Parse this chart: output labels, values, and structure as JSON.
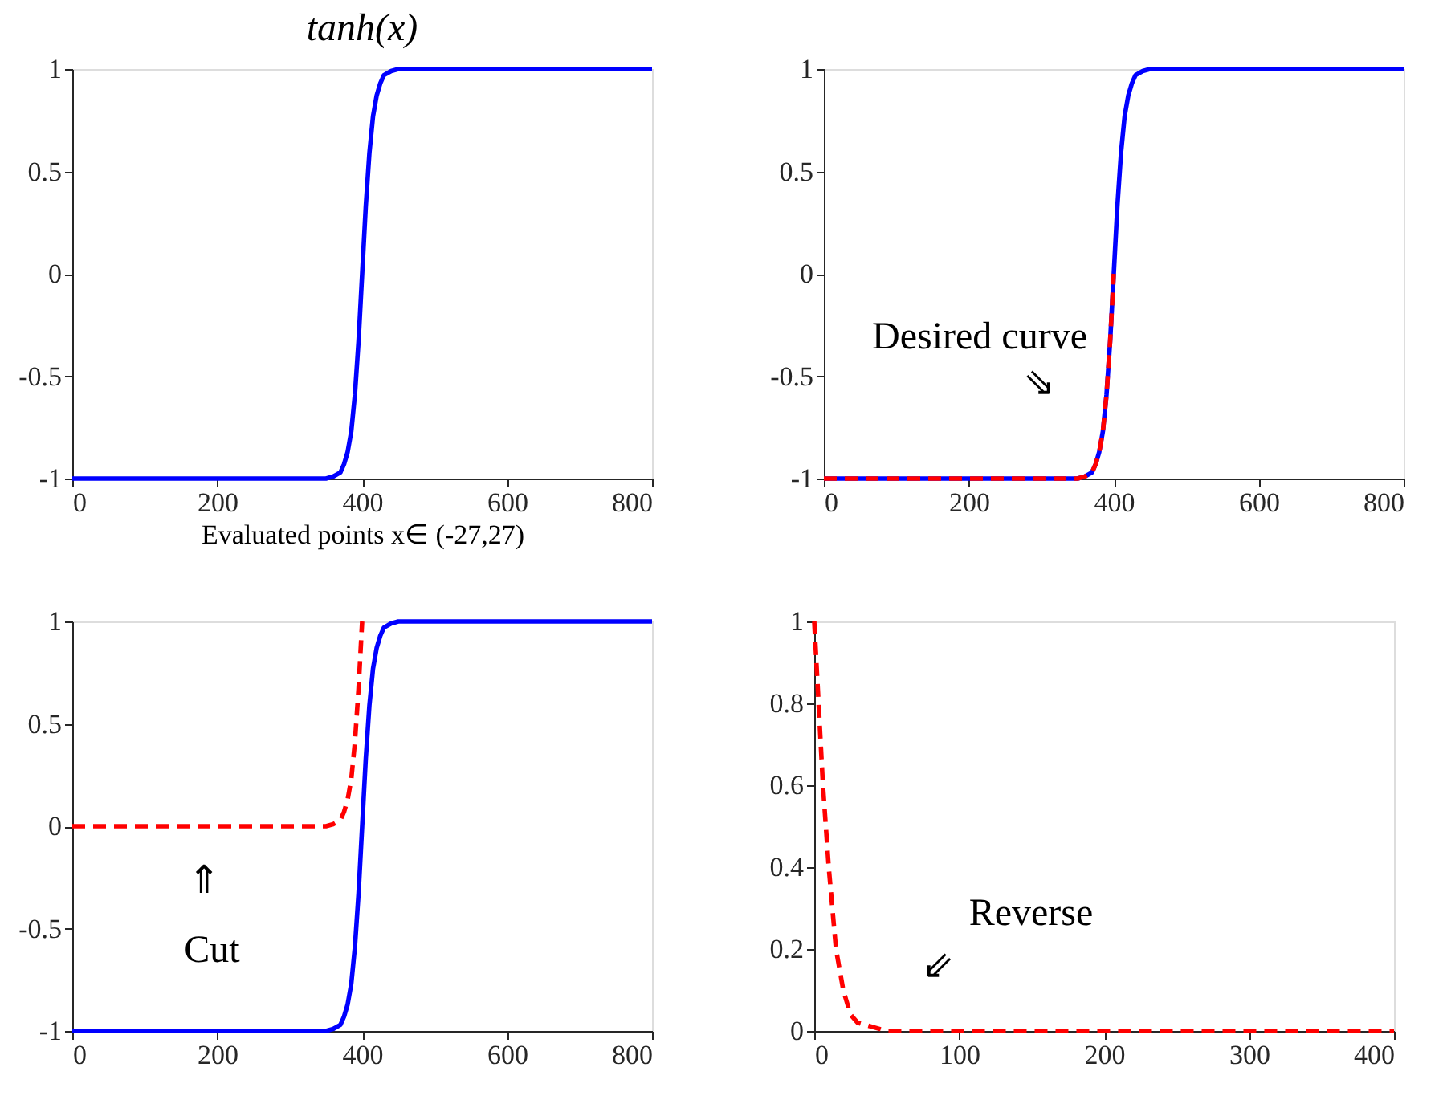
{
  "chart_data": [
    {
      "type": "line",
      "title": "tanh(x)",
      "xlabel": "Evaluated points x∈ (-27,27)",
      "xlim": [
        0,
        800
      ],
      "xticks": [
        0,
        200,
        400,
        600,
        800
      ],
      "ylim": [
        -1,
        1
      ],
      "yticks": [
        -1,
        -0.5,
        0,
        0.5,
        1
      ],
      "grid": false,
      "legend": false,
      "series": [
        {
          "color": "#0000ff",
          "x": [
            0,
            300,
            350,
            360,
            370,
            375,
            380,
            385,
            390,
            395,
            400,
            405,
            410,
            415,
            420,
            425,
            430,
            440,
            450,
            500,
            800
          ],
          "values": [
            -1,
            -1,
            -1,
            -0.99,
            -0.97,
            -0.93,
            -0.87,
            -0.77,
            -0.59,
            -0.33,
            0,
            0.33,
            0.59,
            0.77,
            0.87,
            0.93,
            0.97,
            0.99,
            1,
            1,
            1
          ],
          "line_style": "solid"
        }
      ]
    },
    {
      "type": "line",
      "xlim": [
        0,
        800
      ],
      "xticks": [
        0,
        200,
        400,
        600,
        800
      ],
      "ylim": [
        -1,
        1
      ],
      "yticks": [
        -1,
        -0.5,
        0,
        0.5,
        1
      ],
      "grid": false,
      "legend": false,
      "series": [
        {
          "color": "#0000ff",
          "x": [
            0,
            300,
            350,
            360,
            370,
            375,
            380,
            385,
            390,
            395,
            400,
            405,
            410,
            415,
            420,
            425,
            430,
            440,
            450,
            500,
            800
          ],
          "values": [
            -1,
            -1,
            -1,
            -0.99,
            -0.97,
            -0.93,
            -0.87,
            -0.77,
            -0.59,
            -0.33,
            0,
            0.33,
            0.59,
            0.77,
            0.87,
            0.93,
            0.97,
            0.99,
            1,
            1,
            1
          ],
          "line_style": "solid"
        },
        {
          "color": "#ff0000",
          "x": [
            0,
            300,
            350,
            360,
            370,
            375,
            380,
            385,
            390,
            395,
            400
          ],
          "values": [
            -1,
            -1,
            -1,
            -0.99,
            -0.97,
            -0.93,
            -0.87,
            -0.77,
            -0.59,
            -0.33,
            0
          ],
          "line_style": "dashed"
        }
      ],
      "annotations": [
        "Desired curve",
        "⇘"
      ]
    },
    {
      "type": "line",
      "xlim": [
        0,
        800
      ],
      "xticks": [
        0,
        200,
        400,
        600,
        800
      ],
      "ylim": [
        -1,
        1
      ],
      "yticks": [
        -1,
        -0.5,
        0,
        0.5,
        1
      ],
      "grid": false,
      "legend": false,
      "series": [
        {
          "color": "#0000ff",
          "x": [
            0,
            300,
            350,
            360,
            370,
            375,
            380,
            385,
            390,
            395,
            400,
            405,
            410,
            415,
            420,
            425,
            430,
            440,
            450,
            500,
            800
          ],
          "values": [
            -1,
            -1,
            -1,
            -0.99,
            -0.97,
            -0.93,
            -0.87,
            -0.77,
            -0.59,
            -0.33,
            0,
            0.33,
            0.59,
            0.77,
            0.87,
            0.93,
            0.97,
            0.99,
            1,
            1,
            1
          ],
          "line_style": "solid"
        },
        {
          "color": "#ff0000",
          "x": [
            0,
            300,
            350,
            360,
            370,
            375,
            380,
            385,
            390,
            395,
            400
          ],
          "values": [
            0,
            0,
            0,
            0.01,
            0.03,
            0.07,
            0.13,
            0.23,
            0.41,
            0.67,
            1
          ],
          "line_style": "dashed"
        }
      ],
      "annotations": [
        "⇑",
        "Cut"
      ]
    },
    {
      "type": "line",
      "xlim": [
        0,
        400
      ],
      "xticks": [
        0,
        100,
        200,
        300,
        400
      ],
      "ylim": [
        0,
        1
      ],
      "yticks": [
        0,
        0.2,
        0.4,
        0.6,
        0.8,
        1
      ],
      "grid": false,
      "legend": false,
      "series": [
        {
          "color": "#ff0000",
          "x": [
            0,
            3,
            6,
            10,
            15,
            20,
            25,
            30,
            40,
            50,
            100,
            400
          ],
          "values": [
            1,
            0.8,
            0.6,
            0.4,
            0.2,
            0.1,
            0.04,
            0.02,
            0.01,
            0,
            0,
            0
          ],
          "line_style": "dashed"
        }
      ],
      "annotations": [
        "Reverse",
        "⇙"
      ]
    }
  ]
}
